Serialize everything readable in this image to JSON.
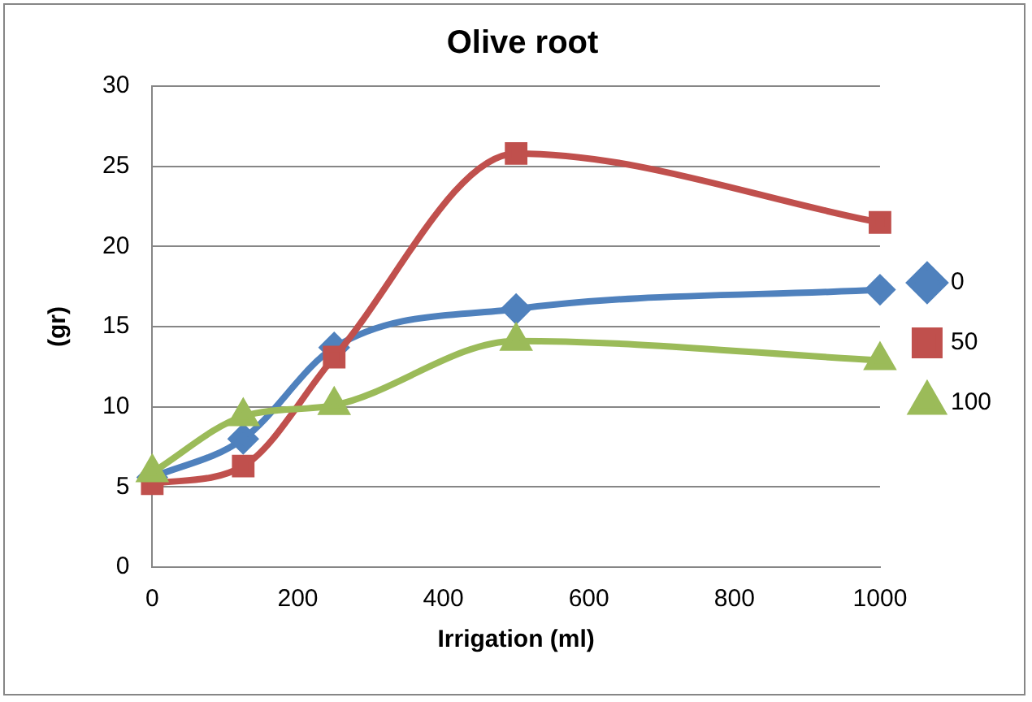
{
  "chart_data": {
    "type": "line",
    "title": "Olive root",
    "xlabel": "Irrigation (ml)",
    "ylabel": "(gr)",
    "x": [
      0,
      125,
      250,
      500,
      1000
    ],
    "series": [
      {
        "name": "0",
        "color": "#4f81bd",
        "marker": "diamond",
        "values": [
          5.6,
          8.0,
          13.7,
          16.1,
          17.3
        ]
      },
      {
        "name": "50",
        "color": "#c0504d",
        "marker": "square",
        "values": [
          5.2,
          6.3,
          13.1,
          25.8,
          21.5
        ]
      },
      {
        "name": "100",
        "color": "#9bbb59",
        "marker": "triangle",
        "values": [
          5.9,
          9.4,
          10.1,
          14.1,
          12.9
        ]
      }
    ],
    "xlim": [
      0,
      1000
    ],
    "xticks": [
      0,
      200,
      400,
      600,
      800,
      1000
    ],
    "ylim": [
      0,
      30
    ],
    "yticks": [
      0,
      5,
      10,
      15,
      20,
      25,
      30
    ],
    "grid": "y",
    "legend": "right",
    "line_style": "solid"
  }
}
